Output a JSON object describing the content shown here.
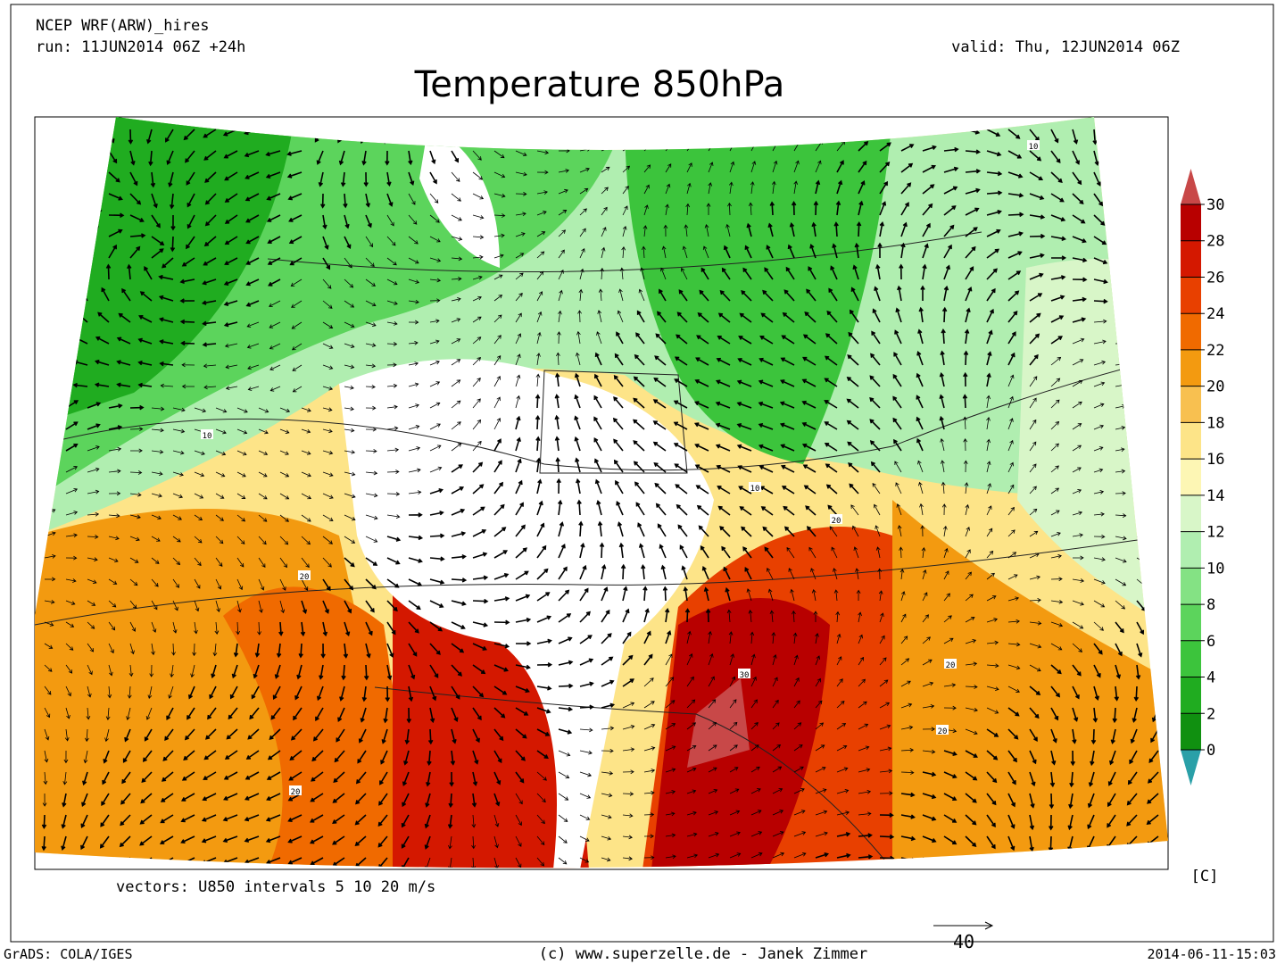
{
  "header": {
    "model": "NCEP WRF(ARW)_hires",
    "run": "run: 11JUN2014 06Z +24h",
    "valid": "valid: Thu, 12JUN2014 06Z",
    "title": "Temperature 850hPa"
  },
  "colorbar": {
    "levels": [
      0,
      2,
      4,
      6,
      8,
      10,
      12,
      14,
      16,
      18,
      20,
      22,
      24,
      26,
      28,
      30
    ],
    "colors": [
      "#109010",
      "#20ac20",
      "#3cc43c",
      "#5cd45c",
      "#84e284",
      "#b0eeb0",
      "#d8f6c8",
      "#fdf6b4",
      "#fde488",
      "#f8c050",
      "#f39a10",
      "#f06a00",
      "#e84000",
      "#d41800",
      "#b80000"
    ],
    "below_color": "#2aa0a8",
    "above_color": "#c84848",
    "unit": "[C]"
  },
  "contour_labels": [
    "10",
    "10",
    "10",
    "20",
    "20",
    "20",
    "20",
    "20",
    "30"
  ],
  "footer": {
    "vectors": "vectors: U850 intervals 5 10 20 m/s",
    "reference_vector": "40",
    "software": "GrADS: COLA/IGES",
    "credit": "(c) www.superzelle.de - Janek Zimmer",
    "timestamp": "2014-06-11-15:03"
  }
}
